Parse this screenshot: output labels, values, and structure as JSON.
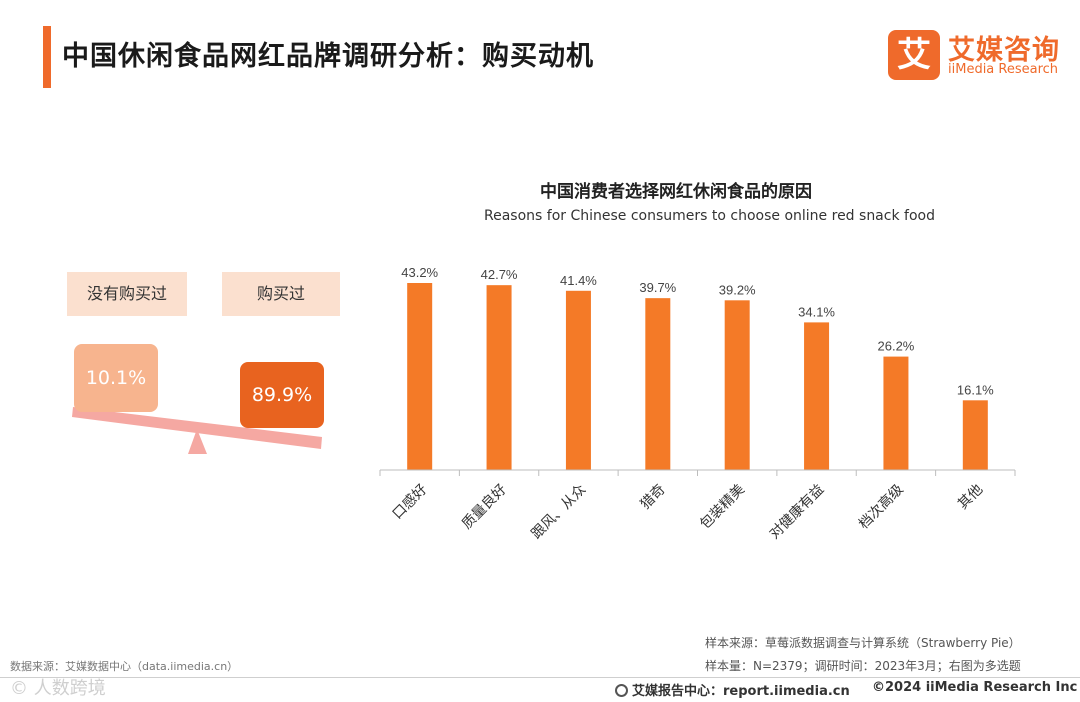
{
  "header": {
    "title": "中国休闲食品网红品牌调研分析：购买动机"
  },
  "logo": {
    "mark": "艾",
    "cn": "艾媒咨询",
    "en": "iiMedia Research"
  },
  "seesaw": {
    "labels": {
      "not_bought": "没有购买过",
      "bought": "购买过"
    },
    "values": {
      "not_bought": "10.1%",
      "bought": "89.9%"
    }
  },
  "chart_data": {
    "type": "bar",
    "title": "中国消费者选择网红休闲食品的原因",
    "subtitle": "Reasons for Chinese consumers to choose online red snack food",
    "categories": [
      "口感好",
      "质量良好",
      "跟风、从众",
      "猎奇",
      "包装精美",
      "对健康有益",
      "档次高级",
      "其他"
    ],
    "values": [
      43.2,
      42.7,
      41.4,
      39.7,
      39.2,
      34.1,
      26.2,
      16.1
    ],
    "data_labels": [
      "43.2%",
      "42.7%",
      "41.4%",
      "39.7%",
      "39.2%",
      "34.1%",
      "26.2%",
      "16.1%"
    ],
    "unit": "%",
    "ylim": [
      0,
      50
    ],
    "grid": false,
    "bar_color": "#f47a27",
    "xlabel": "",
    "ylabel": ""
  },
  "sources": {
    "sample_source": "样本来源：草莓派数据调查与计算系统（Strawberry Pie）",
    "sample_info": "样本量：N=2379；调研时间：2023年3月；右图为多选题",
    "data_source": "数据来源：艾媒数据中心（data.iimedia.cn）"
  },
  "footer": {
    "watermark": "©  人数跨境",
    "report_center": "艾媒报告中心：report.iimedia.cn",
    "copyright": "©2024  iiMedia Research Inc"
  }
}
